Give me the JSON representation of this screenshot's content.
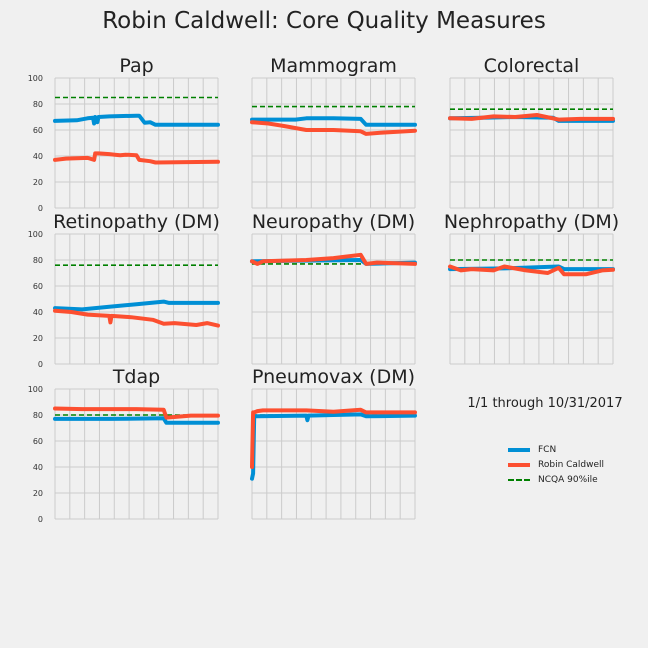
{
  "title": "Robin Caldwell: Core Quality Measures",
  "note": "1/1 through 10/31/2017",
  "legend": [
    {
      "label": "FCN",
      "color": "#008fd5",
      "style": "solid"
    },
    {
      "label": "Robin Caldwell",
      "color": "#fc4f30",
      "style": "solid"
    },
    {
      "label": "NCQA 90%ile",
      "color": "#008000",
      "style": "dashed"
    }
  ],
  "chart_data": [
    {
      "type": "line",
      "title": "Pap",
      "ylim": [
        0,
        100
      ],
      "yticks": [
        0,
        20,
        40,
        60,
        80,
        100
      ],
      "xlim": [
        0,
        300
      ],
      "threshold": 85,
      "series": [
        {
          "name": "FCN",
          "color": "#008fd5",
          "x": [
            0,
            40,
            60,
            70,
            72,
            74,
            78,
            80,
            100,
            150,
            155,
            165,
            175,
            185,
            300
          ],
          "y": [
            67,
            67.5,
            69,
            69.5,
            65,
            70,
            66,
            70,
            70.5,
            71,
            71,
            65.5,
            66,
            64,
            64
          ]
        },
        {
          "name": "Robin Caldwell",
          "color": "#fc4f30",
          "x": [
            0,
            20,
            60,
            72,
            74,
            80,
            100,
            110,
            120,
            130,
            150,
            155,
            175,
            185,
            300
          ],
          "y": [
            37,
            38,
            38.5,
            37,
            42,
            42,
            41.5,
            41,
            40.5,
            41,
            40.5,
            37,
            36,
            35,
            35.5
          ]
        }
      ]
    },
    {
      "type": "line",
      "title": "Mammogram",
      "ylim": [
        0,
        100
      ],
      "yticks": [],
      "xlim": [
        0,
        300
      ],
      "threshold": 78,
      "series": [
        {
          "name": "FCN",
          "color": "#008fd5",
          "x": [
            0,
            80,
            100,
            150,
            200,
            210,
            300
          ],
          "y": [
            68,
            68,
            69,
            69,
            68.5,
            64,
            64
          ]
        },
        {
          "name": "Robin Caldwell",
          "color": "#fc4f30",
          "x": [
            0,
            30,
            60,
            100,
            150,
            200,
            210,
            240,
            300
          ],
          "y": [
            66,
            65,
            63,
            60,
            60,
            59,
            57,
            58,
            59.5
          ]
        }
      ]
    },
    {
      "type": "line",
      "title": "Colorectal",
      "ylim": [
        0,
        100
      ],
      "yticks": [],
      "xlim": [
        0,
        300
      ],
      "threshold": 76,
      "series": [
        {
          "name": "FCN",
          "color": "#008fd5",
          "x": [
            0,
            60,
            120,
            190,
            200,
            300
          ],
          "y": [
            69,
            69.5,
            70,
            69.5,
            67,
            67
          ]
        },
        {
          "name": "Robin Caldwell",
          "color": "#fc4f30",
          "x": [
            0,
            40,
            80,
            120,
            160,
            200,
            240,
            300
          ],
          "y": [
            69,
            68.5,
            70.5,
            70,
            71.5,
            68,
            68.5,
            68.5
          ]
        }
      ]
    },
    {
      "type": "line",
      "title": "Retinopathy (DM)",
      "ylim": [
        0,
        100
      ],
      "yticks": [
        0,
        20,
        40,
        60,
        80,
        100
      ],
      "xlim": [
        0,
        300
      ],
      "threshold": 76,
      "series": [
        {
          "name": "FCN",
          "color": "#008fd5",
          "x": [
            0,
            50,
            100,
            150,
            200,
            210,
            250,
            300
          ],
          "y": [
            43,
            42,
            44,
            46,
            48,
            47,
            47,
            47
          ]
        },
        {
          "name": "Robin Caldwell",
          "color": "#fc4f30",
          "x": [
            0,
            30,
            60,
            100,
            102,
            104,
            140,
            180,
            200,
            220,
            260,
            280,
            300
          ],
          "y": [
            41,
            40,
            38,
            37,
            32,
            37,
            36,
            34,
            31,
            31.5,
            30,
            31.5,
            29.5
          ]
        }
      ]
    },
    {
      "type": "line",
      "title": "Neuropathy (DM)",
      "ylim": [
        0,
        100
      ],
      "yticks": [],
      "xlim": [
        0,
        300
      ],
      "threshold": 77,
      "series": [
        {
          "name": "FCN",
          "color": "#008fd5",
          "x": [
            0,
            100,
            200,
            210,
            300
          ],
          "y": [
            79,
            79.5,
            80,
            77,
            78
          ]
        },
        {
          "name": "Robin Caldwell",
          "color": "#fc4f30",
          "x": [
            0,
            10,
            20,
            100,
            150,
            200,
            210,
            230,
            300
          ],
          "y": [
            79,
            77,
            79,
            80,
            81.5,
            84,
            77,
            78,
            77
          ]
        }
      ]
    },
    {
      "type": "line",
      "title": "Nephropathy (DM)",
      "ylim": [
        0,
        100
      ],
      "yticks": [],
      "xlim": [
        0,
        300
      ],
      "threshold": 80,
      "series": [
        {
          "name": "FCN",
          "color": "#008fd5",
          "x": [
            0,
            100,
            200,
            210,
            300
          ],
          "y": [
            73,
            73.5,
            75,
            73,
            73
          ]
        },
        {
          "name": "Robin Caldwell",
          "color": "#fc4f30",
          "x": [
            0,
            20,
            40,
            80,
            100,
            140,
            180,
            200,
            210,
            250,
            280,
            300
          ],
          "y": [
            75,
            72,
            73,
            72,
            75,
            72,
            70,
            74,
            69,
            69,
            72,
            72.5
          ]
        }
      ]
    },
    {
      "type": "line",
      "title": "Tdap",
      "ylim": [
        0,
        100
      ],
      "yticks": [
        0,
        20,
        40,
        60,
        80,
        100
      ],
      "xlim": [
        0,
        300
      ],
      "threshold": 80,
      "series": [
        {
          "name": "FCN",
          "color": "#008fd5",
          "x": [
            0,
            100,
            200,
            205,
            300
          ],
          "y": [
            77,
            77,
            77.5,
            74,
            74
          ]
        },
        {
          "name": "Robin Caldwell",
          "color": "#fc4f30",
          "x": [
            0,
            50,
            100,
            150,
            200,
            205,
            250,
            300
          ],
          "y": [
            85,
            84.5,
            84.5,
            84.5,
            84,
            78,
            79.5,
            79.5
          ]
        }
      ]
    },
    {
      "type": "line",
      "title": "Pneumovax (DM)",
      "ylim": [
        0,
        100
      ],
      "yticks": [],
      "xlim": [
        0,
        300
      ],
      "threshold": 80,
      "series": [
        {
          "name": "FCN",
          "color": "#008fd5",
          "x": [
            0,
            2,
            4,
            10,
            100,
            102,
            104,
            150,
            200,
            210,
            300
          ],
          "y": [
            31,
            35,
            79,
            79,
            79.5,
            76,
            79.5,
            80,
            80.5,
            79,
            79.5
          ]
        },
        {
          "name": "Robin Caldwell",
          "color": "#fc4f30",
          "x": [
            0,
            2,
            4,
            10,
            20,
            100,
            150,
            200,
            210,
            300
          ],
          "y": [
            40,
            82,
            82,
            83,
            83.5,
            83.5,
            82.5,
            84,
            82,
            82
          ]
        }
      ]
    }
  ]
}
